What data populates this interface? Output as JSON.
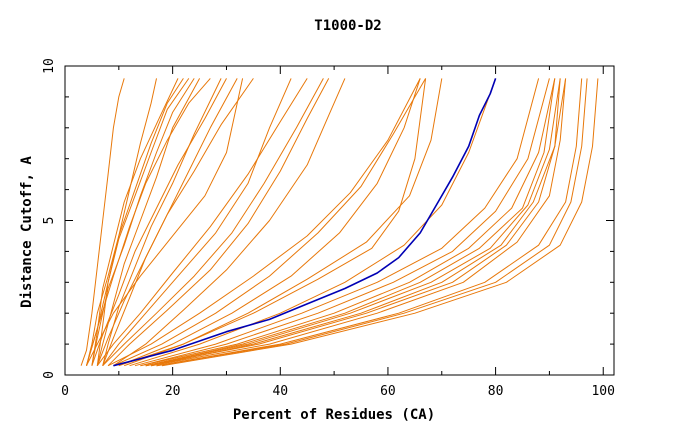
{
  "chart_data": {
    "type": "line",
    "title": "T1000-D2",
    "xlabel": "Percent of Residues (CA)",
    "ylabel": "Distance Cutoff, A",
    "xlim": [
      0,
      102
    ],
    "ylim": [
      0,
      10
    ],
    "xticks": [
      0,
      20,
      40,
      60,
      80,
      100
    ],
    "yticks": [
      0,
      5,
      10
    ],
    "grid": false,
    "colors": {
      "other_models": "#e8780a",
      "highlight": "#0000b4",
      "axis": "#000000"
    },
    "series": [
      {
        "group": "other",
        "x": [
          3,
          4,
          5,
          6,
          7,
          8,
          9,
          10,
          11
        ],
        "y": [
          0.3,
          0.8,
          2,
          3.5,
          5,
          6.5,
          8,
          9,
          9.6
        ]
      },
      {
        "group": "other",
        "x": [
          4,
          5,
          6,
          8,
          10,
          12,
          14,
          16,
          17
        ],
        "y": [
          0.3,
          1,
          2,
          3.2,
          4.5,
          6,
          7.5,
          8.8,
          9.6
        ]
      },
      {
        "group": "other",
        "x": [
          4,
          6,
          8,
          10,
          13,
          16,
          19,
          22
        ],
        "y": [
          0.3,
          1.5,
          3,
          4.5,
          6,
          7.5,
          8.8,
          9.6
        ]
      },
      {
        "group": "other",
        "x": [
          5,
          6,
          8,
          11,
          14,
          17,
          20,
          24
        ],
        "y": [
          0.3,
          1.2,
          2.8,
          4.2,
          5.8,
          7.2,
          8.5,
          9.6
        ]
      },
      {
        "group": "other",
        "x": [
          4,
          6,
          9,
          12,
          15,
          19,
          23,
          27
        ],
        "y": [
          0.3,
          1.5,
          3.2,
          4.8,
          6.2,
          7.6,
          8.8,
          9.6
        ]
      },
      {
        "group": "other",
        "x": [
          6,
          7,
          9,
          11,
          14,
          17,
          20,
          25
        ],
        "y": [
          0.3,
          1,
          2.3,
          3.6,
          5,
          6.4,
          8,
          9.6
        ]
      },
      {
        "group": "other",
        "x": [
          7,
          8,
          10,
          13,
          16,
          20,
          24,
          29
        ],
        "y": [
          0.3,
          1,
          2.2,
          3.5,
          4.8,
          6.2,
          7.8,
          9.6
        ]
      },
      {
        "group": "other",
        "x": [
          5,
          7,
          10,
          13,
          17,
          21,
          26,
          30
        ],
        "y": [
          0.3,
          1.3,
          2.6,
          4,
          5.4,
          6.8,
          8.3,
          9.6
        ]
      },
      {
        "group": "other",
        "x": [
          6,
          8,
          11,
          15,
          19,
          23,
          27,
          32
        ],
        "y": [
          0.3,
          1.2,
          2.4,
          3.8,
          5.2,
          6.6,
          8,
          9.6
        ]
      },
      {
        "group": "other",
        "x": [
          7,
          9,
          12,
          15,
          19,
          24,
          29,
          35
        ],
        "y": [
          0.3,
          1.2,
          2.5,
          3.8,
          5.2,
          6.6,
          8.1,
          9.6
        ]
      },
      {
        "group": "other",
        "x": [
          5,
          6,
          7,
          9,
          11,
          14,
          18,
          21
        ],
        "y": [
          0.3,
          1.4,
          2.8,
          4.2,
          5.6,
          7,
          8.5,
          9.6
        ]
      },
      {
        "group": "other",
        "x": [
          6,
          7,
          8,
          10,
          13,
          16,
          19,
          23
        ],
        "y": [
          0.3,
          1.6,
          3,
          4.4,
          5.8,
          7.2,
          8.6,
          9.6
        ]
      },
      {
        "group": "other",
        "x": [
          4,
          6,
          9,
          14,
          20,
          26,
          30,
          33
        ],
        "y": [
          0.3,
          1,
          2,
          3.2,
          4.5,
          5.8,
          7.2,
          9.6
        ]
      },
      {
        "group": "other",
        "x": [
          7,
          10,
          15,
          21,
          28,
          34,
          38,
          42
        ],
        "y": [
          0.3,
          1,
          2,
          3.2,
          4.6,
          6.2,
          8,
          9.6
        ]
      },
      {
        "group": "other",
        "x": [
          6,
          9,
          14,
          20,
          27,
          34,
          40,
          45
        ],
        "y": [
          0.3,
          1,
          2,
          3.3,
          4.8,
          6.5,
          8.2,
          9.6
        ]
      },
      {
        "group": "other",
        "x": [
          7,
          11,
          17,
          24,
          31,
          37,
          43,
          48
        ],
        "y": [
          0.3,
          1,
          2,
          3.2,
          4.6,
          6.2,
          8,
          9.6
        ]
      },
      {
        "group": "other",
        "x": [
          8,
          12,
          19,
          27,
          34,
          40,
          45,
          49
        ],
        "y": [
          0.3,
          1,
          2.1,
          3.4,
          4.9,
          6.6,
          8.3,
          9.6
        ]
      },
      {
        "group": "other",
        "x": [
          9,
          15,
          22,
          30,
          38,
          45,
          49,
          52
        ],
        "y": [
          0.3,
          1,
          2.1,
          3.4,
          5,
          6.8,
          8.4,
          9.6
        ]
      },
      {
        "group": "other",
        "x": [
          8,
          16,
          25,
          35,
          45,
          53,
          60,
          66
        ],
        "y": [
          0.3,
          1,
          2,
          3.2,
          4.5,
          5.9,
          7.6,
          9.6
        ]
      },
      {
        "group": "other",
        "x": [
          9,
          18,
          28,
          38,
          47,
          55,
          61,
          67
        ],
        "y": [
          0.3,
          1,
          2,
          3.2,
          4.6,
          6.1,
          7.8,
          9.6
        ]
      },
      {
        "group": "other",
        "x": [
          10,
          20,
          31,
          42,
          51,
          58,
          63,
          66
        ],
        "y": [
          0.3,
          1,
          2,
          3.2,
          4.6,
          6.2,
          8,
          9.6
        ]
      },
      {
        "group": "other",
        "x": [
          11,
          22,
          34,
          45,
          56,
          64,
          68,
          70
        ],
        "y": [
          0.3,
          1,
          2,
          3.1,
          4.3,
          5.8,
          7.6,
          9.6
        ]
      },
      {
        "group": "other",
        "x": [
          10,
          22,
          35,
          47,
          57,
          62,
          65,
          67
        ],
        "y": [
          0.3,
          1,
          2,
          3.1,
          4.1,
          5.3,
          7,
          9.6
        ]
      },
      {
        "group": "other",
        "x": [
          12,
          25,
          40,
          52,
          63,
          70,
          75,
          80
        ],
        "y": [
          0.3,
          1,
          2,
          3,
          4.2,
          5.5,
          7.2,
          9.6
        ]
      },
      {
        "group": "other",
        "x": [
          13,
          28,
          44,
          58,
          70,
          78,
          84,
          88
        ],
        "y": [
          0.3,
          1,
          2,
          3,
          4.1,
          5.4,
          7,
          9.6
        ]
      },
      {
        "group": "other",
        "x": [
          14,
          30,
          47,
          61,
          72,
          80,
          86,
          90
        ],
        "y": [
          0.3,
          1,
          2,
          3,
          4,
          5.3,
          7,
          9.6
        ]
      },
      {
        "group": "other",
        "x": [
          14,
          32,
          50,
          64,
          75,
          83,
          88,
          91
        ],
        "y": [
          0.3,
          1,
          2,
          3,
          4.1,
          5.4,
          7.2,
          9.6
        ]
      },
      {
        "group": "other",
        "x": [
          15,
          33,
          52,
          66,
          77,
          85,
          89,
          91
        ],
        "y": [
          0.3,
          1,
          2,
          3,
          4.1,
          5.4,
          7.2,
          9.6
        ]
      },
      {
        "group": "other",
        "x": [
          15,
          34,
          53,
          68,
          79,
          86,
          90,
          92
        ],
        "y": [
          0.3,
          1,
          2,
          3,
          4.1,
          5.5,
          7.3,
          9.6
        ]
      },
      {
        "group": "other",
        "x": [
          16,
          35,
          55,
          70,
          81,
          87,
          91,
          92
        ],
        "y": [
          0.3,
          1,
          2,
          3,
          4.2,
          5.6,
          7.4,
          9.6
        ]
      },
      {
        "group": "other",
        "x": [
          15,
          36,
          56,
          72,
          82,
          88,
          91,
          93
        ],
        "y": [
          0.3,
          1,
          2,
          3,
          4.2,
          5.6,
          7.4,
          9.6
        ]
      },
      {
        "group": "other",
        "x": [
          16,
          38,
          58,
          74,
          84,
          90,
          92,
          93
        ],
        "y": [
          0.3,
          1,
          2,
          3,
          4.3,
          5.8,
          7.6,
          9.6
        ]
      },
      {
        "group": "other",
        "x": [
          17,
          40,
          62,
          78,
          88,
          93,
          95,
          96
        ],
        "y": [
          0.3,
          1,
          2,
          3,
          4.2,
          5.6,
          7.4,
          9.6
        ]
      },
      {
        "group": "other",
        "x": [
          18,
          42,
          65,
          82,
          92,
          96,
          98,
          99
        ],
        "y": [
          0.3,
          1,
          2,
          3,
          4.2,
          5.6,
          7.4,
          9.6
        ]
      },
      {
        "group": "other",
        "x": [
          17,
          41,
          63,
          80,
          90,
          94,
          96,
          97
        ],
        "y": [
          0.3,
          1,
          2,
          3,
          4.2,
          5.6,
          7.4,
          9.6
        ]
      },
      {
        "group": "highlight",
        "x": [
          9,
          20,
          30,
          38,
          45,
          52,
          58,
          62,
          66,
          69,
          72,
          75,
          77,
          79,
          80
        ],
        "y": [
          0.3,
          0.8,
          1.4,
          1.8,
          2.3,
          2.8,
          3.3,
          3.8,
          4.6,
          5.5,
          6.4,
          7.4,
          8.4,
          9.1,
          9.6
        ]
      }
    ]
  }
}
